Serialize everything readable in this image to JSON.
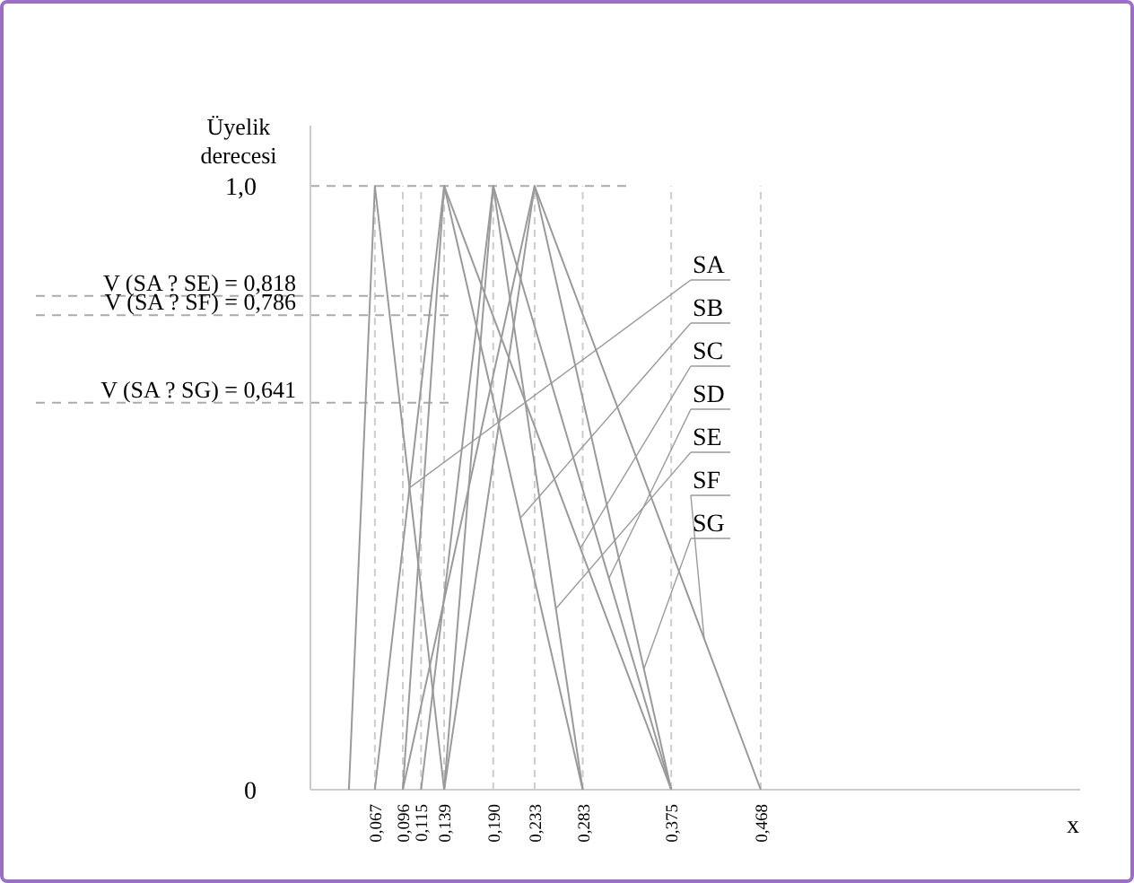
{
  "chart_data": {
    "type": "line",
    "xlabel": "x",
    "ylabel": "Üyelik\nderecesi",
    "xlim": [
      0,
      0.8
    ],
    "xticks": [
      {
        "value": 0.067,
        "label": "0,067"
      },
      {
        "value": 0.096,
        "label": "0,096"
      },
      {
        "value": 0.115,
        "label": "0,115"
      },
      {
        "value": 0.139,
        "label": "0,139"
      },
      {
        "value": 0.19,
        "label": "0,190"
      },
      {
        "value": 0.233,
        "label": "0,233"
      },
      {
        "value": 0.283,
        "label": "0,283"
      },
      {
        "value": 0.375,
        "label": "0,375"
      },
      {
        "value": 0.468,
        "label": "0,468"
      }
    ],
    "ylim": [
      0,
      1.1
    ],
    "yticks": [
      0,
      {
        "value": 1,
        "label": "1,0"
      }
    ],
    "grid": "x",
    "legend": "right",
    "marker": "none",
    "line_style": "solid",
    "series": [
      {
        "name": "SA",
        "color": "#9a9a9a",
        "x": [
          0.04,
          0.067,
          0.139
        ],
        "values": [
          0,
          1,
          0
        ]
      },
      {
        "name": "SB",
        "color": "#9a9a9a",
        "x": [
          0.067,
          0.139,
          0.283
        ],
        "values": [
          0,
          1,
          0
        ]
      },
      {
        "name": "SC",
        "color": "#9a9a9a",
        "x": [
          0.096,
          0.139,
          0.375
        ],
        "values": [
          0,
          1,
          0
        ]
      },
      {
        "name": "SD",
        "color": "#9a9a9a",
        "x": [
          0.115,
          0.19,
          0.375
        ],
        "values": [
          0,
          1,
          0
        ]
      },
      {
        "name": "SE",
        "color": "#9a9a9a",
        "x": [
          0.139,
          0.19,
          0.283
        ],
        "values": [
          0,
          1,
          0
        ]
      },
      {
        "name": "SF",
        "color": "#9a9a9a",
        "x": [
          0.096,
          0.233,
          0.468
        ],
        "values": [
          0,
          1,
          0
        ]
      },
      {
        "name": "SG",
        "color": "#9a9a9a",
        "x": [
          0.139,
          0.233,
          0.375
        ],
        "values": [
          0,
          1,
          0
        ]
      }
    ],
    "ref_lines": [
      {
        "axis": "y",
        "value": 1,
        "label": null,
        "line_style": "dashed",
        "color": "#aaaaaa"
      },
      {
        "axis": "y",
        "value": 0.818,
        "label": "V (SA ? SE) = 0,818",
        "line_style": "dashed",
        "color": "#aaaaaa"
      },
      {
        "axis": "y",
        "value": 0.786,
        "label": "V (SA ? SF) = 0,786",
        "line_style": "dashed",
        "color": "#aaaaaa"
      },
      {
        "axis": "y",
        "value": 0.641,
        "label": "V (SA ? SG) = 0,641",
        "line_style": "dashed",
        "color": "#aaaaaa"
      }
    ]
  }
}
